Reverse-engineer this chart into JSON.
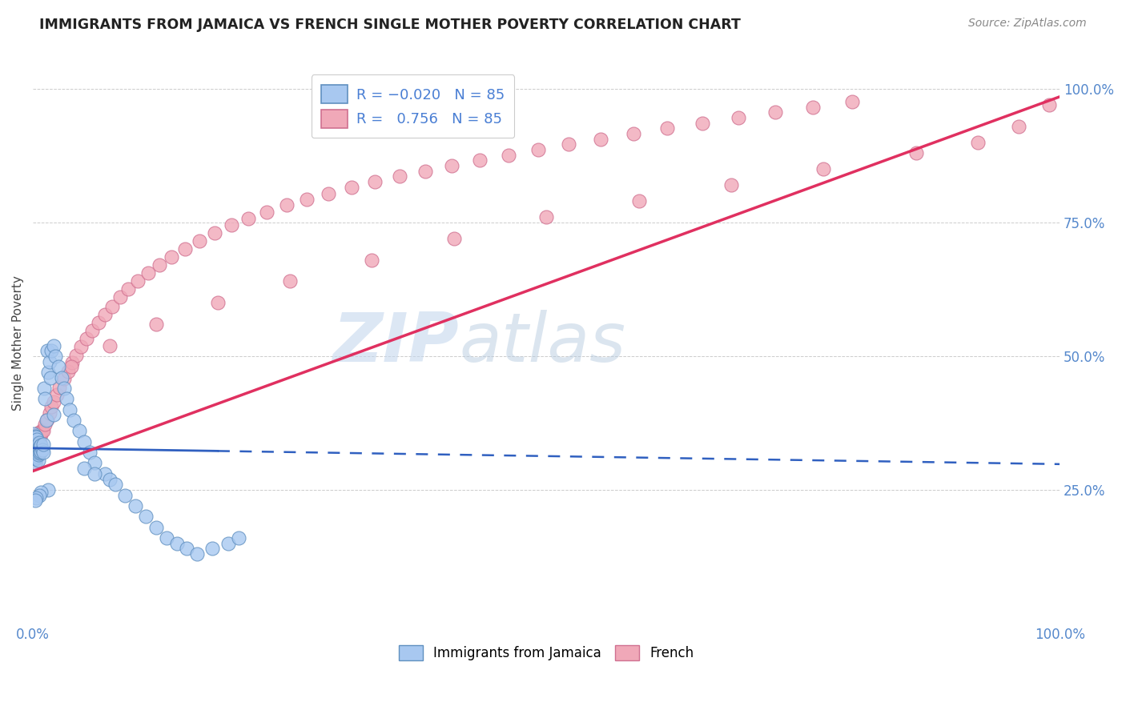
{
  "title": "IMMIGRANTS FROM JAMAICA VS FRENCH SINGLE MOTHER POVERTY CORRELATION CHART",
  "source": "Source: ZipAtlas.com",
  "ylabel": "Single Mother Poverty",
  "xlim": [
    0.0,
    1.0
  ],
  "ylim": [
    0.0,
    1.05
  ],
  "color_jamaica": "#a8c8f0",
  "color_french": "#f0a8b8",
  "color_jamaica_line": "#3060c0",
  "color_french_line": "#e03060",
  "watermark_zip": "ZIP",
  "watermark_atlas": "atlas",
  "background_color": "#ffffff",
  "jamaica_x": [
    0.001,
    0.001,
    0.001,
    0.001,
    0.001,
    0.001,
    0.001,
    0.001,
    0.001,
    0.001,
    0.002,
    0.002,
    0.002,
    0.002,
    0.002,
    0.002,
    0.002,
    0.002,
    0.003,
    0.003,
    0.003,
    0.003,
    0.003,
    0.003,
    0.004,
    0.004,
    0.004,
    0.004,
    0.004,
    0.005,
    0.005,
    0.005,
    0.005,
    0.006,
    0.006,
    0.006,
    0.007,
    0.007,
    0.008,
    0.008,
    0.009,
    0.01,
    0.01,
    0.011,
    0.012,
    0.013,
    0.014,
    0.015,
    0.016,
    0.017,
    0.018,
    0.02,
    0.022,
    0.025,
    0.028,
    0.03,
    0.033,
    0.036,
    0.04,
    0.045,
    0.05,
    0.055,
    0.06,
    0.07,
    0.075,
    0.08,
    0.09,
    0.1,
    0.11,
    0.12,
    0.13,
    0.14,
    0.15,
    0.16,
    0.175,
    0.19,
    0.2,
    0.05,
    0.06,
    0.02,
    0.015,
    0.008,
    0.006,
    0.003,
    0.002
  ],
  "jamaica_y": [
    0.31,
    0.315,
    0.32,
    0.325,
    0.33,
    0.335,
    0.34,
    0.345,
    0.35,
    0.355,
    0.3,
    0.308,
    0.315,
    0.322,
    0.328,
    0.335,
    0.342,
    0.35,
    0.31,
    0.318,
    0.325,
    0.332,
    0.34,
    0.348,
    0.312,
    0.32,
    0.328,
    0.336,
    0.344,
    0.305,
    0.315,
    0.325,
    0.335,
    0.318,
    0.328,
    0.338,
    0.32,
    0.332,
    0.322,
    0.334,
    0.325,
    0.32,
    0.335,
    0.44,
    0.42,
    0.38,
    0.51,
    0.47,
    0.49,
    0.46,
    0.51,
    0.52,
    0.5,
    0.48,
    0.46,
    0.44,
    0.42,
    0.4,
    0.38,
    0.36,
    0.34,
    0.32,
    0.3,
    0.28,
    0.27,
    0.26,
    0.24,
    0.22,
    0.2,
    0.18,
    0.16,
    0.15,
    0.14,
    0.13,
    0.14,
    0.15,
    0.16,
    0.29,
    0.28,
    0.39,
    0.25,
    0.245,
    0.24,
    0.235,
    0.23
  ],
  "french_x": [
    0.001,
    0.001,
    0.001,
    0.002,
    0.002,
    0.002,
    0.002,
    0.003,
    0.003,
    0.003,
    0.004,
    0.004,
    0.004,
    0.005,
    0.005,
    0.006,
    0.006,
    0.007,
    0.008,
    0.009,
    0.01,
    0.012,
    0.014,
    0.016,
    0.018,
    0.02,
    0.023,
    0.026,
    0.03,
    0.034,
    0.038,
    0.042,
    0.047,
    0.052,
    0.058,
    0.064,
    0.07,
    0.077,
    0.085,
    0.093,
    0.102,
    0.112,
    0.123,
    0.135,
    0.148,
    0.162,
    0.177,
    0.193,
    0.21,
    0.228,
    0.247,
    0.267,
    0.288,
    0.31,
    0.333,
    0.357,
    0.382,
    0.408,
    0.435,
    0.463,
    0.492,
    0.522,
    0.553,
    0.585,
    0.618,
    0.652,
    0.687,
    0.723,
    0.76,
    0.798,
    0.037,
    0.075,
    0.12,
    0.18,
    0.25,
    0.33,
    0.41,
    0.5,
    0.59,
    0.68,
    0.77,
    0.86,
    0.92,
    0.96,
    0.99
  ],
  "french_y": [
    0.31,
    0.32,
    0.33,
    0.3,
    0.315,
    0.325,
    0.34,
    0.318,
    0.33,
    0.345,
    0.325,
    0.338,
    0.352,
    0.335,
    0.35,
    0.34,
    0.358,
    0.348,
    0.355,
    0.362,
    0.36,
    0.372,
    0.382,
    0.393,
    0.405,
    0.415,
    0.428,
    0.442,
    0.458,
    0.472,
    0.488,
    0.502,
    0.518,
    0.533,
    0.548,
    0.563,
    0.578,
    0.593,
    0.61,
    0.625,
    0.64,
    0.655,
    0.67,
    0.685,
    0.7,
    0.715,
    0.73,
    0.745,
    0.758,
    0.77,
    0.782,
    0.793,
    0.804,
    0.815,
    0.826,
    0.836,
    0.846,
    0.856,
    0.866,
    0.876,
    0.886,
    0.896,
    0.906,
    0.916,
    0.926,
    0.936,
    0.946,
    0.956,
    0.966,
    0.976,
    0.48,
    0.52,
    0.56,
    0.6,
    0.64,
    0.68,
    0.72,
    0.76,
    0.79,
    0.82,
    0.85,
    0.88,
    0.9,
    0.93,
    0.97
  ],
  "jamaica_trend_x": [
    0.0,
    1.0
  ],
  "jamaica_trend_y": [
    0.328,
    0.298
  ],
  "french_trend_x": [
    0.0,
    1.0
  ],
  "french_trend_y": [
    0.285,
    0.985
  ]
}
